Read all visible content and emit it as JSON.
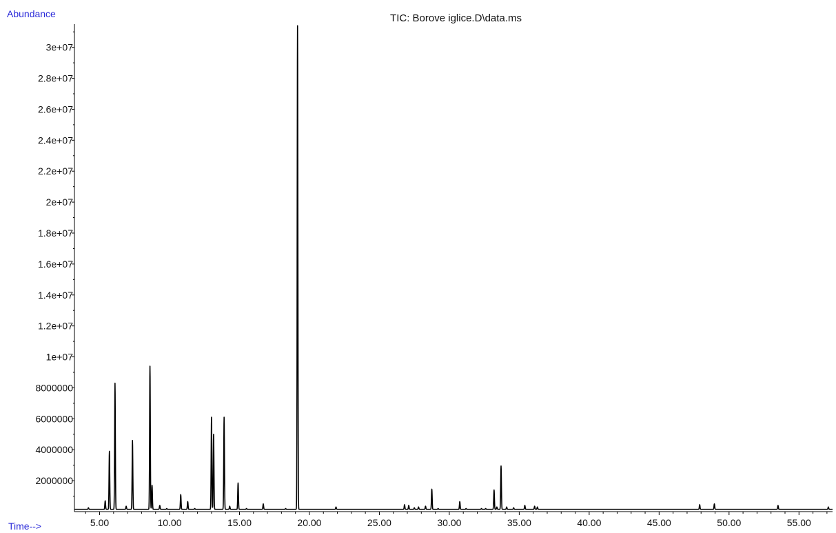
{
  "chart_data": {
    "type": "line",
    "title": "TIC: Borove iglice.D\\data.ms",
    "xlabel": "Time-->",
    "ylabel": "Abundance",
    "xlim": [
      3.2,
      57.4
    ],
    "ylim": [
      0,
      31500000
    ],
    "x_ticks": [
      5,
      10,
      15,
      20,
      25,
      30,
      35,
      40,
      45,
      50,
      55
    ],
    "x_tick_labels": [
      "5.00",
      "10.00",
      "15.00",
      "20.00",
      "25.00",
      "30.00",
      "35.00",
      "40.00",
      "45.00",
      "50.00",
      "55.00"
    ],
    "y_ticks": [
      2000000,
      4000000,
      6000000,
      8000000,
      10000000,
      12000000,
      14000000,
      16000000,
      18000000,
      20000000,
      22000000,
      24000000,
      26000000,
      28000000,
      30000000
    ],
    "y_tick_labels": [
      "2000000",
      "4000000",
      "6000000",
      "8000000",
      "1e+07",
      "1.2e+07",
      "1.4e+07",
      "1.6e+07",
      "1.8e+07",
      "2e+07",
      "2.2e+07",
      "2.4e+07",
      "2.6e+07",
      "2.8e+07",
      "3e+07"
    ],
    "baseline": 150000,
    "series": [
      {
        "peaks": [
          [
            4.2,
            250000
          ],
          [
            5.4,
            700000
          ],
          [
            5.7,
            3900000
          ],
          [
            6.1,
            8300000
          ],
          [
            6.9,
            350000
          ],
          [
            7.35,
            4600000
          ],
          [
            8.6,
            9400000
          ],
          [
            8.75,
            1700000
          ],
          [
            9.3,
            400000
          ],
          [
            9.8,
            200000
          ],
          [
            10.8,
            1100000
          ],
          [
            11.3,
            650000
          ],
          [
            11.8,
            200000
          ],
          [
            12.3,
            150000
          ],
          [
            13.0,
            6100000
          ],
          [
            13.15,
            5000000
          ],
          [
            13.9,
            6100000
          ],
          [
            14.3,
            350000
          ],
          [
            14.9,
            1850000
          ],
          [
            15.5,
            200000
          ],
          [
            16.0,
            150000
          ],
          [
            16.7,
            500000
          ],
          [
            17.5,
            150000
          ],
          [
            18.3,
            200000
          ],
          [
            19.15,
            31400000
          ],
          [
            20.5,
            150000
          ],
          [
            21.3,
            150000
          ],
          [
            21.9,
            300000
          ],
          [
            22.6,
            150000
          ],
          [
            25.7,
            150000
          ],
          [
            26.8,
            450000
          ],
          [
            27.1,
            400000
          ],
          [
            27.5,
            250000
          ],
          [
            27.8,
            300000
          ],
          [
            28.3,
            350000
          ],
          [
            28.75,
            1450000
          ],
          [
            29.2,
            200000
          ],
          [
            29.7,
            150000
          ],
          [
            30.75,
            650000
          ],
          [
            31.2,
            200000
          ],
          [
            32.3,
            200000
          ],
          [
            32.6,
            200000
          ],
          [
            33.2,
            1400000
          ],
          [
            33.4,
            300000
          ],
          [
            33.7,
            2950000
          ],
          [
            34.1,
            300000
          ],
          [
            34.6,
            250000
          ],
          [
            35.4,
            400000
          ],
          [
            36.1,
            350000
          ],
          [
            36.3,
            300000
          ],
          [
            37.0,
            150000
          ],
          [
            38.5,
            150000
          ],
          [
            40.9,
            150000
          ],
          [
            42.2,
            150000
          ],
          [
            44.0,
            150000
          ],
          [
            45.1,
            150000
          ],
          [
            46.3,
            150000
          ],
          [
            47.9,
            450000
          ],
          [
            48.6,
            150000
          ],
          [
            48.95,
            500000
          ],
          [
            50.1,
            150000
          ],
          [
            52.2,
            150000
          ],
          [
            53.5,
            400000
          ],
          [
            55.0,
            150000
          ],
          [
            57.1,
            300000
          ]
        ]
      }
    ]
  }
}
